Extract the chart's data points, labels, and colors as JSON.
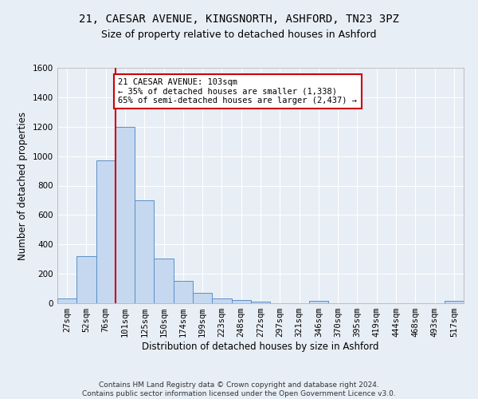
{
  "title_line1": "21, CAESAR AVENUE, KINGSNORTH, ASHFORD, TN23 3PZ",
  "title_line2": "Size of property relative to detached houses in Ashford",
  "xlabel": "Distribution of detached houses by size in Ashford",
  "ylabel": "Number of detached properties",
  "bar_color": "#c5d8f0",
  "bar_edge_color": "#5b8fc9",
  "vline_color": "#cc0000",
  "vline_x_index": 3,
  "categories": [
    "27sqm",
    "52sqm",
    "76sqm",
    "101sqm",
    "125sqm",
    "150sqm",
    "174sqm",
    "199sqm",
    "223sqm",
    "248sqm",
    "272sqm",
    "297sqm",
    "321sqm",
    "346sqm",
    "370sqm",
    "395sqm",
    "419sqm",
    "444sqm",
    "468sqm",
    "493sqm",
    "517sqm"
  ],
  "values": [
    30,
    320,
    970,
    1200,
    700,
    305,
    150,
    70,
    30,
    20,
    12,
    0,
    0,
    15,
    0,
    0,
    0,
    0,
    0,
    0,
    15
  ],
  "ylim": [
    0,
    1600
  ],
  "yticks": [
    0,
    200,
    400,
    600,
    800,
    1000,
    1200,
    1400,
    1600
  ],
  "annotation_text": "21 CAESAR AVENUE: 103sqm\n← 35% of detached houses are smaller (1,338)\n65% of semi-detached houses are larger (2,437) →",
  "annotation_box_color": "#ffffff",
  "annotation_edge_color": "#cc0000",
  "footer_line1": "Contains HM Land Registry data © Crown copyright and database right 2024.",
  "footer_line2": "Contains public sector information licensed under the Open Government Licence v3.0.",
  "bg_color": "#e8eef5",
  "plot_bg_color": "#e8eef5",
  "grid_color": "#ffffff",
  "title_fontsize": 10,
  "subtitle_fontsize": 9,
  "axis_label_fontsize": 8.5,
  "tick_fontsize": 7.5,
  "annotation_fontsize": 7.5,
  "footer_fontsize": 6.5
}
